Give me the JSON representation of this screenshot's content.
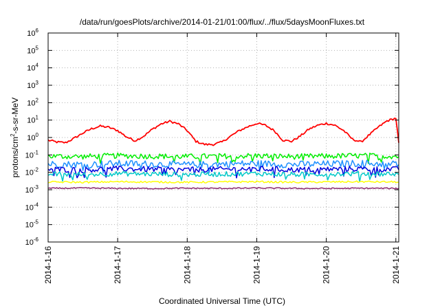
{
  "chart_data": {
    "type": "line",
    "title": "/data/run/goesPlots/archive/2014-01-21/01:00/flux/../flux/5daysMoonFluxes.txt",
    "xlabel": "Coordinated Universal Time (UTC)",
    "ylabel": {
      "base": "protons/cm",
      "sup": "2",
      "rest": "-s-sr-MeV"
    },
    "x_scale": "date",
    "xlim": [
      "2014-01-16T00:00",
      "2014-01-21T01:00"
    ],
    "x_ticks": [
      "2014-1-16",
      "2014-1-17",
      "2014-1-18",
      "2014-1-19",
      "2014-1-20",
      "2014-1-21"
    ],
    "y_scale": "log",
    "ylim": [
      1e-06,
      1000000.0
    ],
    "y_ticks": [
      {
        "value": 1e-06,
        "exp": "-6"
      },
      {
        "value": 1e-05,
        "exp": "-5"
      },
      {
        "value": 0.0001,
        "exp": "-4"
      },
      {
        "value": 0.001,
        "exp": "-3"
      },
      {
        "value": 0.01,
        "exp": "-2"
      },
      {
        "value": 0.1,
        "exp": "-1"
      },
      {
        "value": 1,
        "exp": "0"
      },
      {
        "value": 10,
        "exp": "1"
      },
      {
        "value": 100,
        "exp": "2"
      },
      {
        "value": 1000,
        "exp": "3"
      },
      {
        "value": 10000,
        "exp": "4"
      },
      {
        "value": 100000,
        "exp": "5"
      },
      {
        "value": 1000000,
        "exp": "6"
      }
    ],
    "grid": true,
    "legend": "none",
    "series": [
      {
        "color": "#ff0000",
        "x": [
          "2014-01-16T00:00",
          "2014-01-16T03:00",
          "2014-01-16T06:00",
          "2014-01-16T09:00",
          "2014-01-16T12:00",
          "2014-01-16T15:00",
          "2014-01-16T18:00",
          "2014-01-16T21:00",
          "2014-01-17T00:00",
          "2014-01-17T03:00",
          "2014-01-17T06:00",
          "2014-01-17T09:00",
          "2014-01-17T12:00",
          "2014-01-17T15:00",
          "2014-01-17T18:00",
          "2014-01-17T21:00",
          "2014-01-18T00:00",
          "2014-01-18T03:00",
          "2014-01-18T06:00",
          "2014-01-18T09:00",
          "2014-01-18T12:00",
          "2014-01-18T15:00",
          "2014-01-18T18:00",
          "2014-01-18T21:00",
          "2014-01-19T00:00",
          "2014-01-19T03:00",
          "2014-01-19T06:00",
          "2014-01-19T09:00",
          "2014-01-19T12:00",
          "2014-01-19T15:00",
          "2014-01-19T18:00",
          "2014-01-19T21:00",
          "2014-01-20T00:00",
          "2014-01-20T03:00",
          "2014-01-20T06:00",
          "2014-01-20T09:00",
          "2014-01-20T12:00",
          "2014-01-20T15:00",
          "2014-01-20T18:00",
          "2014-01-20T21:00",
          "2014-01-21T00:00",
          "2014-01-21T01:00"
        ],
        "values": [
          0.7,
          0.55,
          0.5,
          0.9,
          1.8,
          3.2,
          4.5,
          3.8,
          2.5,
          1.1,
          0.65,
          1.2,
          3,
          6,
          8.5,
          6,
          2.5,
          0.6,
          0.4,
          0.4,
          0.55,
          1.2,
          2.5,
          4.2,
          6.5,
          5,
          2.5,
          0.7,
          0.6,
          1.2,
          3,
          5,
          6.5,
          5,
          2.5,
          0.8,
          0.55,
          1.5,
          4,
          9,
          13,
          0.5
        ]
      },
      {
        "color": "#00ee00",
        "x": [
          "2014-01-16T00:00",
          "2014-01-16T12:00",
          "2014-01-17T00:00",
          "2014-01-17T12:00",
          "2014-01-18T00:00",
          "2014-01-18T12:00",
          "2014-01-19T00:00",
          "2014-01-19T12:00",
          "2014-01-20T00:00",
          "2014-01-20T12:00",
          "2014-01-21T00:00",
          "2014-01-21T01:00"
        ],
        "values": [
          0.085,
          0.08,
          0.09,
          0.085,
          0.08,
          0.085,
          0.09,
          0.08,
          0.085,
          0.09,
          0.085,
          0.08
        ]
      },
      {
        "color": "#1e90ff",
        "x": [
          "2014-01-16T00:00",
          "2014-01-16T12:00",
          "2014-01-17T00:00",
          "2014-01-17T12:00",
          "2014-01-18T00:00",
          "2014-01-18T12:00",
          "2014-01-19T00:00",
          "2014-01-19T12:00",
          "2014-01-20T00:00",
          "2014-01-20T12:00",
          "2014-01-21T00:00",
          "2014-01-21T01:00"
        ],
        "values": [
          0.03,
          0.028,
          0.032,
          0.03,
          0.027,
          0.03,
          0.032,
          0.028,
          0.03,
          0.033,
          0.03,
          0.028
        ]
      },
      {
        "color": "#0000dd",
        "x": [
          "2014-01-16T00:00",
          "2014-01-16T12:00",
          "2014-01-17T00:00",
          "2014-01-17T12:00",
          "2014-01-18T00:00",
          "2014-01-18T12:00",
          "2014-01-19T00:00",
          "2014-01-19T12:00",
          "2014-01-20T00:00",
          "2014-01-20T12:00",
          "2014-01-21T00:00",
          "2014-01-21T01:00"
        ],
        "values": [
          0.015,
          0.014,
          0.016,
          0.015,
          0.014,
          0.015,
          0.016,
          0.014,
          0.015,
          0.016,
          0.015,
          0.014
        ]
      },
      {
        "color": "#00c8c8",
        "x": [
          "2014-01-16T00:00",
          "2014-01-16T12:00",
          "2014-01-17T00:00",
          "2014-01-17T12:00",
          "2014-01-18T00:00",
          "2014-01-18T12:00",
          "2014-01-19T00:00",
          "2014-01-19T12:00",
          "2014-01-20T00:00",
          "2014-01-20T12:00",
          "2014-01-21T00:00",
          "2014-01-21T01:00"
        ],
        "values": [
          0.008,
          0.0075,
          0.0085,
          0.008,
          0.0075,
          0.008,
          0.0085,
          0.0075,
          0.008,
          0.0085,
          0.008,
          0.0075
        ]
      },
      {
        "color": "#ffff00",
        "x": [
          "2014-01-16T00:00",
          "2014-01-16T12:00",
          "2014-01-17T00:00",
          "2014-01-17T12:00",
          "2014-01-18T00:00",
          "2014-01-18T12:00",
          "2014-01-19T00:00",
          "2014-01-19T12:00",
          "2014-01-20T00:00",
          "2014-01-20T12:00",
          "2014-01-21T00:00",
          "2014-01-21T01:00"
        ],
        "values": [
          0.0028,
          0.0027,
          0.0029,
          0.0028,
          0.0027,
          0.0028,
          0.0029,
          0.0027,
          0.0028,
          0.0029,
          0.0028,
          0.0027
        ]
      },
      {
        "color": "#8b2a6e",
        "x": [
          "2014-01-16T00:00",
          "2014-01-16T12:00",
          "2014-01-17T00:00",
          "2014-01-17T12:00",
          "2014-01-18T00:00",
          "2014-01-18T12:00",
          "2014-01-19T00:00",
          "2014-01-19T12:00",
          "2014-01-20T00:00",
          "2014-01-20T12:00",
          "2014-01-21T00:00",
          "2014-01-21T01:00"
        ],
        "values": [
          0.0012,
          0.00125,
          0.0012,
          0.00118,
          0.00122,
          0.0012,
          0.00125,
          0.0012,
          0.00118,
          0.00122,
          0.0012,
          0.00118
        ]
      }
    ]
  }
}
